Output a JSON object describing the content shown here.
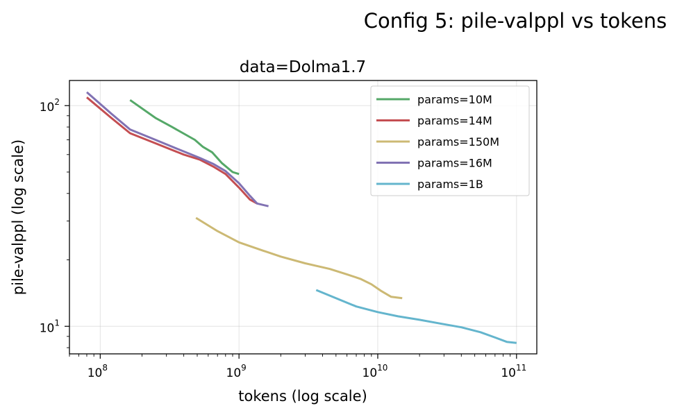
{
  "figure": {
    "suptitle": "Config 5: pile-valppl vs tokens"
  },
  "chart_data": {
    "type": "line",
    "title": "data=Dolma1.7",
    "xlabel": "tokens (log scale)",
    "ylabel": "pile-valppl (log scale)",
    "xscale": "log",
    "yscale": "log",
    "xlim": [
      60000000,
      140000000000
    ],
    "ylim": [
      7.5,
      130
    ],
    "grid": true,
    "legend_position": "top-right",
    "x_ticks": [
      {
        "value": 100000000,
        "base": "10",
        "exp": "8"
      },
      {
        "value": 1000000000,
        "base": "10",
        "exp": "9"
      },
      {
        "value": 10000000000,
        "base": "10",
        "exp": "10"
      },
      {
        "value": 100000000000,
        "base": "10",
        "exp": "11"
      }
    ],
    "y_ticks": [
      {
        "value": 10,
        "base": "10",
        "exp": "1"
      },
      {
        "value": 100,
        "base": "10",
        "exp": "2"
      }
    ],
    "series": [
      {
        "name": "params=10M",
        "color": "#55a868",
        "points": [
          [
            164000000,
            106
          ],
          [
            250000000,
            88
          ],
          [
            330000000,
            80
          ],
          [
            480000000,
            70
          ],
          [
            550000000,
            65
          ],
          [
            640000000,
            61.5
          ],
          [
            750000000,
            55
          ],
          [
            900000000,
            50
          ],
          [
            1000000000,
            49
          ]
        ]
      },
      {
        "name": "params=14M",
        "color": "#c44e52",
        "points": [
          [
            80000000,
            109
          ],
          [
            120000000,
            88
          ],
          [
            164000000,
            75
          ],
          [
            250000000,
            67.5
          ],
          [
            400000000,
            60
          ],
          [
            520000000,
            57
          ],
          [
            650000000,
            53
          ],
          [
            800000000,
            49
          ],
          [
            1000000000,
            42.5
          ],
          [
            1200000000,
            37.5
          ],
          [
            1350000000,
            36
          ]
        ]
      },
      {
        "name": "params=150M",
        "color": "#ccb974",
        "points": [
          [
            490000000,
            31
          ],
          [
            700000000,
            27
          ],
          [
            1000000000,
            24
          ],
          [
            1500000000,
            22
          ],
          [
            2000000000,
            20.7
          ],
          [
            3000000000,
            19.3
          ],
          [
            4500000000,
            18.2
          ],
          [
            6000000000,
            17.2
          ],
          [
            7500000000,
            16.4
          ],
          [
            9000000000,
            15.5
          ],
          [
            10500000000,
            14.5
          ],
          [
            12500000000,
            13.6
          ],
          [
            15000000000,
            13.4
          ]
        ]
      },
      {
        "name": "params=16M",
        "color": "#8172b3",
        "points": [
          [
            80000000,
            115
          ],
          [
            120000000,
            92
          ],
          [
            164000000,
            78
          ],
          [
            250000000,
            70
          ],
          [
            400000000,
            62
          ],
          [
            520000000,
            58
          ],
          [
            650000000,
            54.5
          ],
          [
            800000000,
            50.5
          ],
          [
            1000000000,
            44.5
          ],
          [
            1200000000,
            39
          ],
          [
            1350000000,
            36
          ],
          [
            1630000000,
            35
          ]
        ]
      },
      {
        "name": "params=1B",
        "color": "#64b5cd",
        "points": [
          [
            3600000000,
            14.6
          ],
          [
            5000000000,
            13.4
          ],
          [
            7000000000,
            12.3
          ],
          [
            10000000000,
            11.6
          ],
          [
            14000000000,
            11.1
          ],
          [
            20000000000,
            10.7
          ],
          [
            28000000000,
            10.3
          ],
          [
            40000000000,
            9.9
          ],
          [
            55000000000,
            9.4
          ],
          [
            70000000000,
            8.9
          ],
          [
            85000000000,
            8.5
          ],
          [
            100000000000,
            8.4
          ]
        ]
      }
    ]
  }
}
